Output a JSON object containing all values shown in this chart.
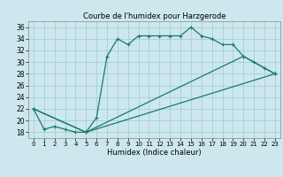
{
  "title": "Courbe de l'humidex pour Harzgerode",
  "xlabel": "Humidex (Indice chaleur)",
  "ylabel": "",
  "background_color": "#cce8ee",
  "grid_color": "#aacdd5",
  "line_color": "#1a7a6e",
  "xlim": [
    -0.5,
    23.5
  ],
  "ylim": [
    17,
    37
  ],
  "yticks": [
    18,
    20,
    22,
    24,
    26,
    28,
    30,
    32,
    34,
    36
  ],
  "xticks": [
    0,
    1,
    2,
    3,
    4,
    5,
    6,
    7,
    8,
    9,
    10,
    11,
    12,
    13,
    14,
    15,
    16,
    17,
    18,
    19,
    20,
    21,
    22,
    23
  ],
  "series": [
    {
      "x": [
        0,
        1,
        2,
        3,
        4,
        5,
        6,
        7,
        8,
        9,
        10,
        11,
        12,
        13,
        14,
        15,
        16,
        17,
        18,
        19,
        20,
        21,
        22,
        23
      ],
      "y": [
        22,
        18.5,
        19,
        18.5,
        18,
        18,
        20.5,
        31,
        34,
        33,
        34.5,
        34.5,
        34.5,
        34.5,
        34.5,
        36,
        34.5,
        34,
        33,
        33,
        31,
        30,
        29,
        28
      ]
    },
    {
      "x": [
        0,
        5,
        20,
        23
      ],
      "y": [
        22,
        18,
        31,
        28
      ]
    },
    {
      "x": [
        0,
        5,
        23
      ],
      "y": [
        22,
        18,
        28
      ]
    }
  ]
}
